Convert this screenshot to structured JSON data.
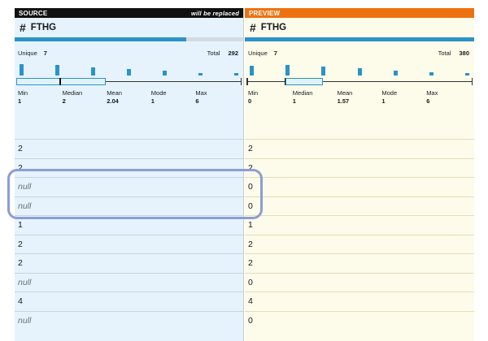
{
  "source": {
    "header_label": "SOURCE",
    "header_note": "will be replaced",
    "column_name": "FTHG",
    "column_icon": "hash-icon",
    "unique_label": "Unique",
    "unique_value": "7",
    "total_label": "Total",
    "total_value": "292",
    "quality_fraction": 0.75,
    "stats": [
      {
        "label": "Min",
        "value": "1"
      },
      {
        "label": "Median",
        "value": "2"
      },
      {
        "label": "Mean",
        "value": "2.04"
      },
      {
        "label": "Mode",
        "value": "1"
      },
      {
        "label": "Max",
        "value": "6"
      }
    ],
    "histogram": [
      1,
      0.95,
      0.75,
      0.6,
      0.4,
      0.2,
      0.1
    ],
    "rows": [
      "2",
      "2",
      "null",
      "null",
      "1",
      "2",
      "2",
      "null",
      "4",
      "null"
    ]
  },
  "preview": {
    "header_label": "PREVIEW",
    "column_name": "FTHG",
    "column_icon": "hash-icon",
    "unique_label": "Unique",
    "unique_value": "7",
    "total_label": "Total",
    "total_value": "380",
    "quality_fraction": 1.0,
    "stats": [
      {
        "label": "Min",
        "value": "0"
      },
      {
        "label": "Median",
        "value": "1"
      },
      {
        "label": "Mean",
        "value": "1.57"
      },
      {
        "label": "Mode",
        "value": "1"
      },
      {
        "label": "Max",
        "value": "6"
      }
    ],
    "histogram": [
      0.85,
      0.95,
      0.8,
      0.65,
      0.45,
      0.3,
      0.2
    ],
    "rows": [
      "2",
      "2",
      "0",
      "0",
      "1",
      "2",
      "2",
      "0",
      "4",
      "0"
    ]
  },
  "colors": {
    "source_header": "#111111",
    "preview_header": "#ec7211",
    "accent": "#2a93c8",
    "highlight": "#8c9dd6"
  }
}
